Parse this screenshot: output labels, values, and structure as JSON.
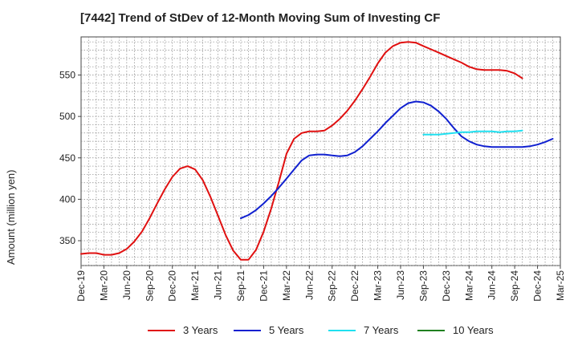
{
  "title": "[7442]  Trend of StDev of 12-Month Moving Sum of Investing CF",
  "chart_data": {
    "type": "line",
    "title": "[7442]  Trend of StDev of 12-Month Moving Sum of Investing CF",
    "xlabel": "",
    "ylabel": "Amount (million yen)",
    "x_tick_labels": [
      "Dec-19",
      "Mar-20",
      "Jun-20",
      "Sep-20",
      "Dec-20",
      "Mar-21",
      "Jun-21",
      "Sep-21",
      "Dec-21",
      "Mar-22",
      "Jun-22",
      "Sep-22",
      "Dec-22",
      "Mar-23",
      "Jun-23",
      "Sep-23",
      "Dec-23",
      "Mar-24",
      "Jun-24",
      "Sep-24",
      "Dec-24",
      "Mar-25"
    ],
    "y_ticks": [
      350,
      400,
      450,
      500,
      550
    ],
    "ylim": [
      320,
      596
    ],
    "grid": true,
    "legend_position": "bottom",
    "series": [
      {
        "name": "3 Years",
        "color": "#e01010",
        "start_index": 0,
        "values": [
          334,
          335,
          335,
          333,
          333,
          335,
          340,
          349,
          361,
          377,
          395,
          412,
          427,
          437,
          440,
          436,
          423,
          403,
          380,
          357,
          338,
          327,
          327,
          339,
          361,
          389,
          421,
          455,
          473,
          480,
          482,
          482,
          483,
          489,
          497,
          507,
          519,
          533,
          548,
          564,
          577,
          585,
          589,
          590,
          589,
          585,
          581,
          577,
          573,
          569,
          565,
          560,
          557,
          556,
          556,
          556,
          555,
          552,
          546
        ]
      },
      {
        "name": "5 Years",
        "color": "#1020d0",
        "start_index": 21,
        "values": [
          377,
          381,
          387,
          395,
          404,
          414,
          425,
          436,
          447,
          453,
          454,
          454,
          453,
          452,
          453,
          457,
          464,
          473,
          482,
          492,
          501,
          510,
          516,
          518,
          517,
          513,
          506,
          497,
          486,
          476,
          470,
          466,
          464,
          463,
          463,
          463,
          463,
          463,
          464,
          466,
          469,
          473
        ]
      },
      {
        "name": "7 Years",
        "color": "#20e0f0",
        "start_index": 45,
        "values": [
          478,
          478,
          478,
          479,
          480,
          481,
          481,
          482,
          482,
          482,
          481,
          482,
          482,
          483
        ]
      },
      {
        "name": "10 Years",
        "color": "#208020",
        "start_index": 0,
        "values": []
      }
    ]
  }
}
